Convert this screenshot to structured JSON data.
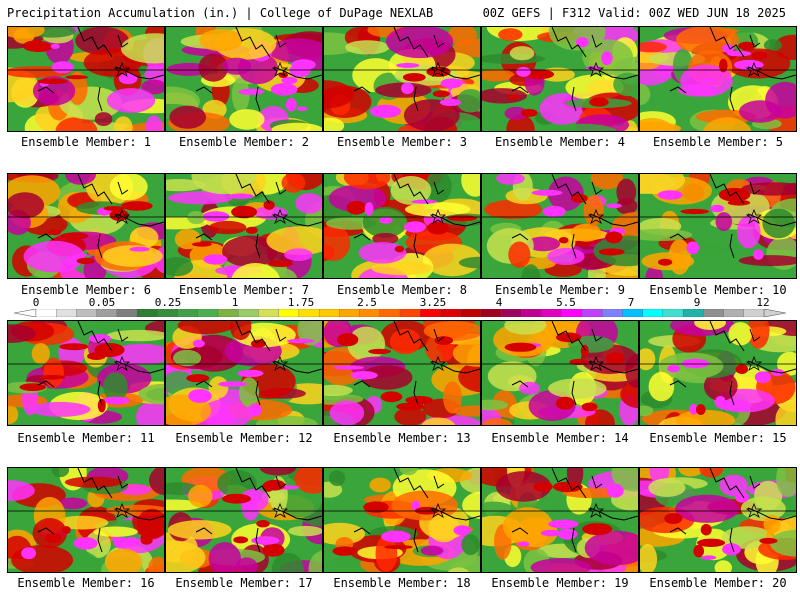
{
  "header": {
    "left": "Precipitation Accumulation (in.) | College of DuPage NEXLAB",
    "right": "00Z GEFS | F312 Valid: 00Z WED JUN 18 2025"
  },
  "panels": [
    {
      "label": "Ensemble Member: 1"
    },
    {
      "label": "Ensemble Member: 2"
    },
    {
      "label": "Ensemble Member: 3"
    },
    {
      "label": "Ensemble Member: 4"
    },
    {
      "label": "Ensemble Member: 5"
    },
    {
      "label": "Ensemble Member: 6"
    },
    {
      "label": "Ensemble Member: 7"
    },
    {
      "label": "Ensemble Member: 8"
    },
    {
      "label": "Ensemble Member: 9"
    },
    {
      "label": "Ensemble Member: 10"
    },
    {
      "label": "Ensemble Member: 11"
    },
    {
      "label": "Ensemble Member: 12"
    },
    {
      "label": "Ensemble Member: 13"
    },
    {
      "label": "Ensemble Member: 14"
    },
    {
      "label": "Ensemble Member: 15"
    },
    {
      "label": "Ensemble Member: 16"
    },
    {
      "label": "Ensemble Member: 17"
    },
    {
      "label": "Ensemble Member: 18"
    },
    {
      "label": "Ensemble Member: 19"
    },
    {
      "label": "Ensemble Member: 20"
    }
  ],
  "colorbar": {
    "ticks": [
      "0",
      "0.05",
      "0.25",
      "1",
      "1.75",
      "2.5",
      "3.25",
      "4",
      "5.5",
      "7",
      "9",
      "12"
    ],
    "colors": [
      "#ffffff",
      "#e0e0e0",
      "#bdbdbd",
      "#9e9e9e",
      "#7f7f7f",
      "#2e7d32",
      "#388e3c",
      "#43a047",
      "#4caf50",
      "#7cb342",
      "#9ccc65",
      "#d4e157",
      "#ffff00",
      "#ffe000",
      "#ffc800",
      "#ffa500",
      "#ff8c00",
      "#ff6a00",
      "#ff4500",
      "#ff0000",
      "#e00000",
      "#c00000",
      "#a00020",
      "#a00060",
      "#c00090",
      "#e000c0",
      "#ff00ff",
      "#c040ff",
      "#8080ff",
      "#00c0ff",
      "#00ffff",
      "#40e0d0",
      "#20b2aa",
      "#909090",
      "#b0b0b0",
      "#d0d0d0"
    ]
  }
}
